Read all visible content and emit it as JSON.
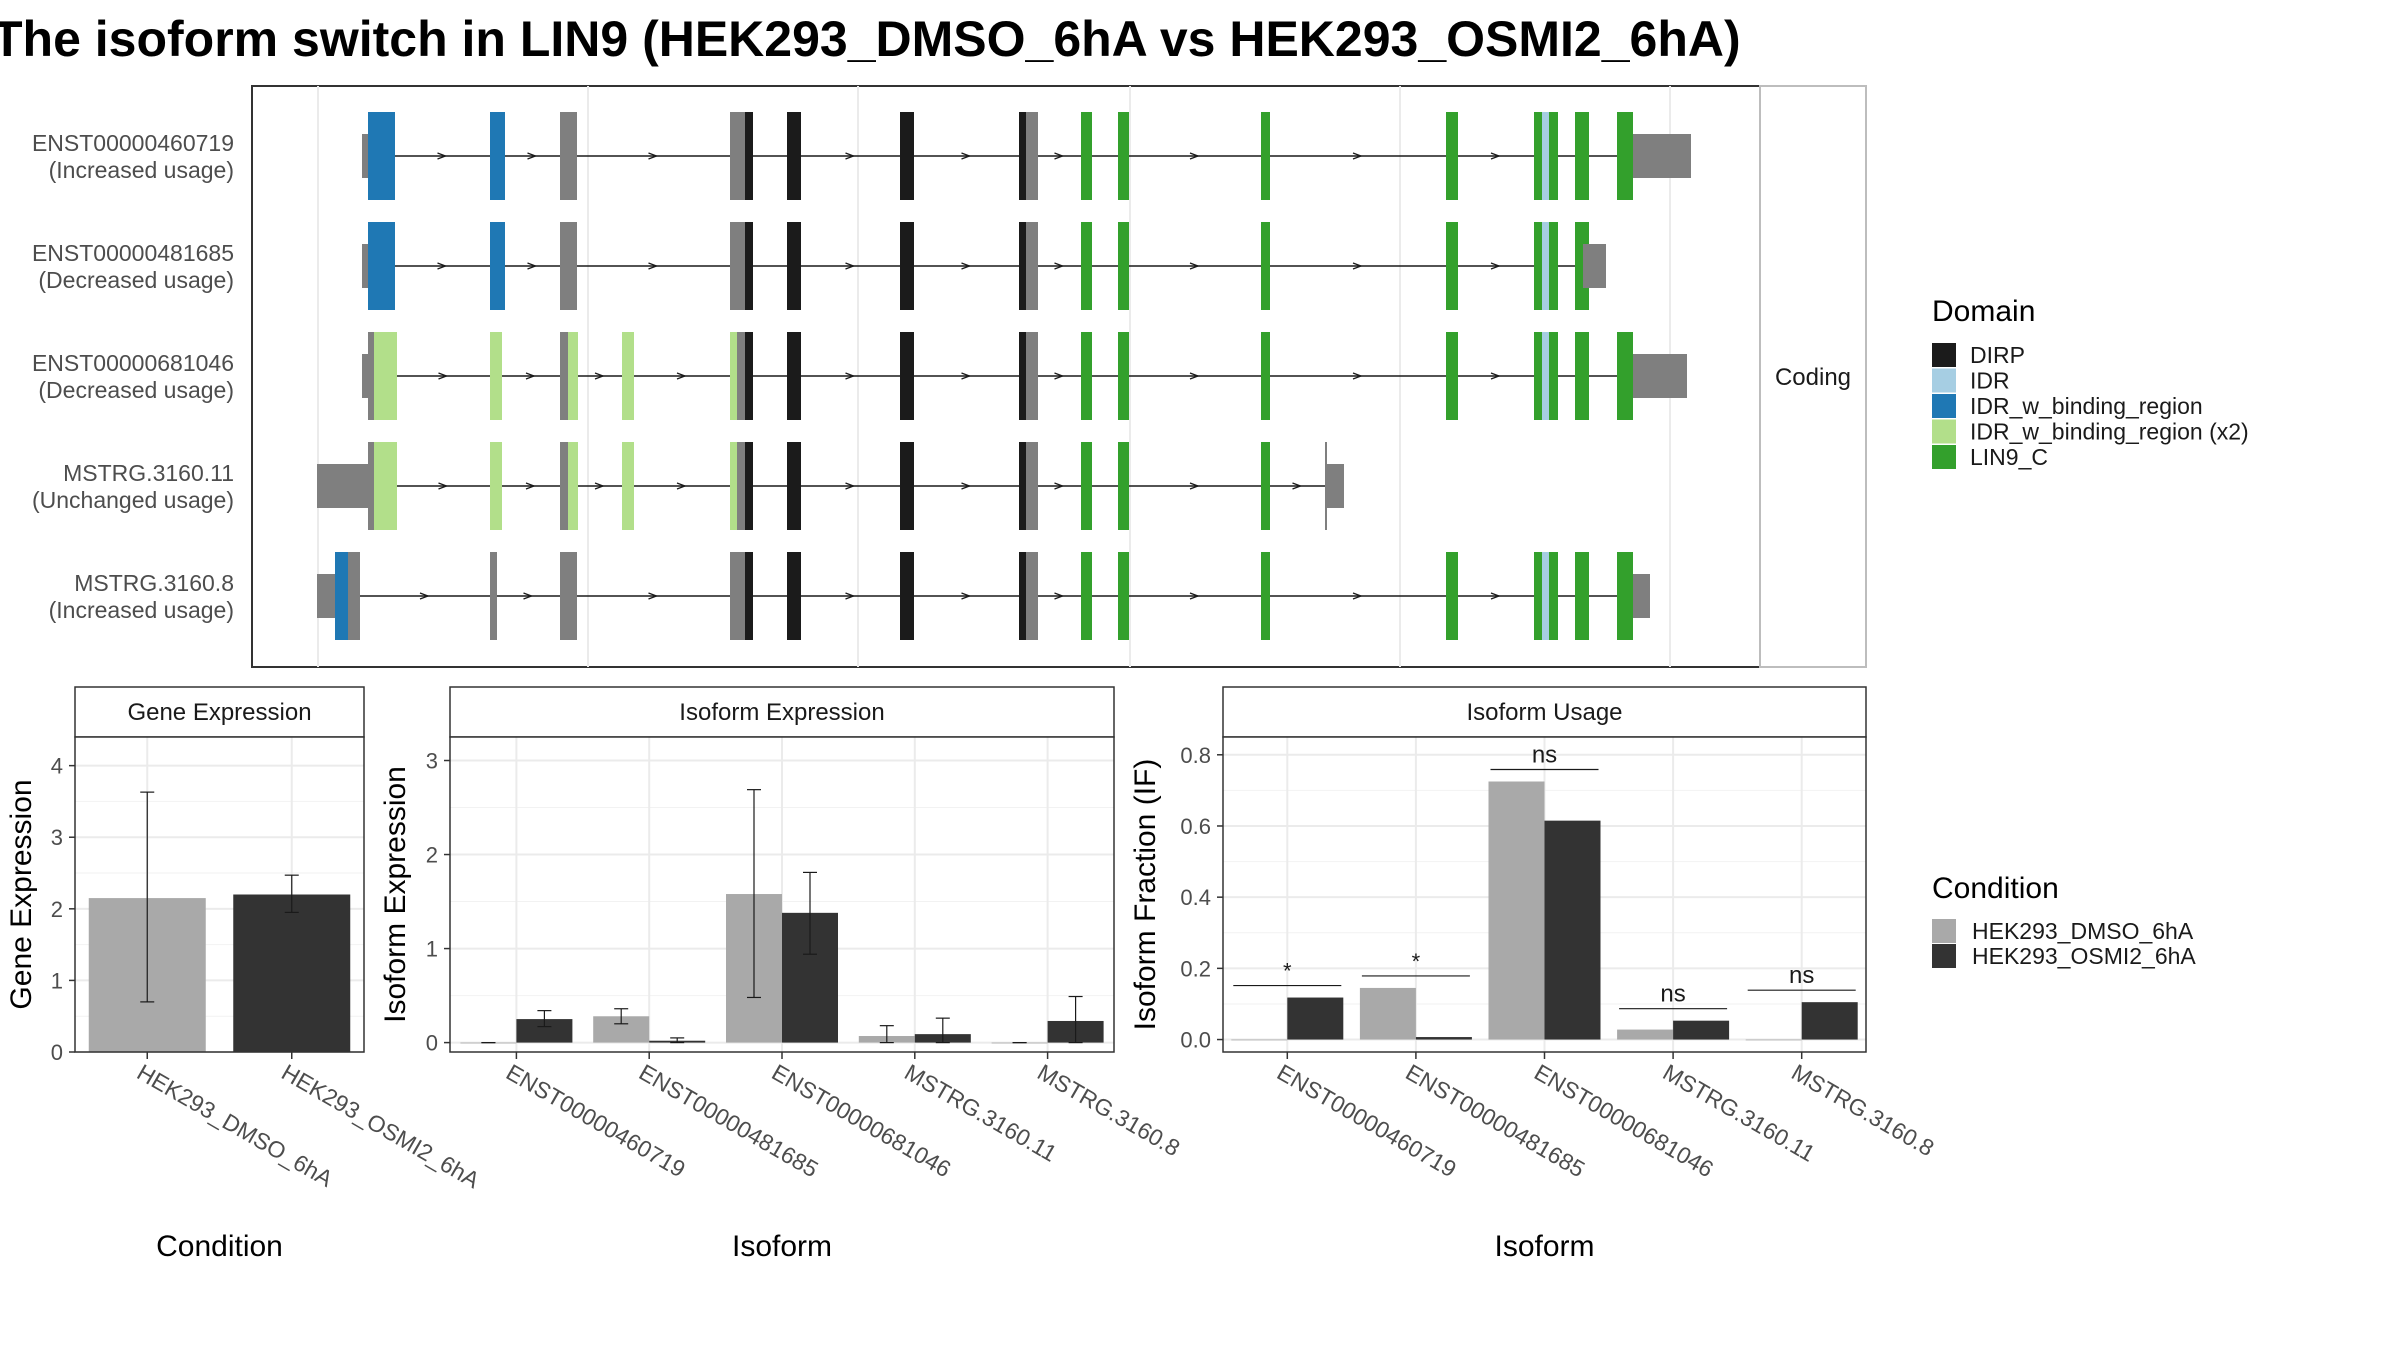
{
  "title": "The isoform switch in LIN9 (HEK293_DMSO_6hA vs HEK293_OSMI2_6hA)",
  "colors": {
    "DIRP": "#1b1b1b",
    "IDR": "#a6cee3",
    "IDR_w_binding_region": "#1f78b4",
    "IDR_w_binding_region (x2)": "#b2df8a",
    "LIN9_C": "#33a02c",
    "noncoding": "#7f7f7f",
    "cond1": "#a9a9a9",
    "cond2": "#333333"
  },
  "structure": {
    "strip_label": "Coding",
    "transcripts": [
      {
        "id": "ENST00000460719",
        "usage": "(Increased usage)"
      },
      {
        "id": "ENST00000481685",
        "usage": "(Decreased usage)"
      },
      {
        "id": "ENST00000681046",
        "usage": "(Decreased usage)"
      },
      {
        "id": "MSTRG.3160.11",
        "usage": "(Unchanged usage)"
      },
      {
        "id": "MSTRG.3160.8",
        "usage": "(Increased usage)"
      }
    ]
  },
  "legends": {
    "domain": {
      "title": "Domain",
      "items": [
        "DIRP",
        "IDR",
        "IDR_w_binding_region",
        "IDR_w_binding_region (x2)",
        "LIN9_C"
      ]
    },
    "condition": {
      "title": "Condition",
      "items": [
        "HEK293_DMSO_6hA",
        "HEK293_OSMI2_6hA"
      ]
    }
  },
  "chart_data": [
    {
      "type": "bar",
      "title": "Gene Expression",
      "xlabel": "Condition",
      "ylabel": "Gene Expression",
      "categories": [
        "HEK293_DMSO_6hA",
        "HEK293_OSMI2_6hA"
      ],
      "values": [
        2.15,
        2.2
      ],
      "error_low": [
        0.7,
        1.95
      ],
      "error_high": [
        3.63,
        2.47
      ],
      "ylim": [
        0,
        4.4
      ],
      "yticks": [
        0,
        1,
        2,
        3,
        4
      ]
    },
    {
      "type": "bar",
      "title": "Isoform Expression",
      "xlabel": "Isoform",
      "ylabel": "Isoform Expression",
      "categories": [
        "ENST00000460719",
        "ENST00000481685",
        "ENST00000681046",
        "MSTRG.3160.11",
        "MSTRG.3160.8"
      ],
      "series": [
        {
          "name": "HEK293_DMSO_6hA",
          "values": [
            0.0,
            0.28,
            1.58,
            0.07,
            0.0
          ],
          "error_low": [
            0.0,
            0.2,
            0.48,
            0.0,
            0.0
          ],
          "error_high": [
            0.0,
            0.36,
            2.69,
            0.18,
            0.0
          ]
        },
        {
          "name": "HEK293_OSMI2_6hA",
          "values": [
            0.25,
            0.02,
            1.38,
            0.09,
            0.23
          ],
          "error_low": [
            0.17,
            0.0,
            0.94,
            0.0,
            0.0
          ],
          "error_high": [
            0.34,
            0.05,
            1.81,
            0.26,
            0.49
          ]
        }
      ],
      "ylim": [
        -0.1,
        3.25
      ],
      "yticks": [
        0,
        1,
        2,
        3
      ]
    },
    {
      "type": "bar",
      "title": "Isoform Usage",
      "xlabel": "Isoform",
      "ylabel": "Isoform Fraction (IF)",
      "categories": [
        "ENST00000460719",
        "ENST00000481685",
        "ENST00000681046",
        "MSTRG.3160.11",
        "MSTRG.3160.8"
      ],
      "series": [
        {
          "name": "HEK293_DMSO_6hA",
          "values": [
            0.0,
            0.145,
            0.725,
            0.028,
            0.0
          ]
        },
        {
          "name": "HEK293_OSMI2_6hA",
          "values": [
            0.118,
            0.007,
            0.615,
            0.053,
            0.105
          ]
        }
      ],
      "significance": [
        "*",
        "*",
        "ns",
        "ns",
        "ns"
      ],
      "ylim": [
        -0.035,
        0.85
      ],
      "yticks": [
        "0.0",
        "0.2",
        "0.4",
        "0.6",
        "0.8"
      ]
    }
  ]
}
